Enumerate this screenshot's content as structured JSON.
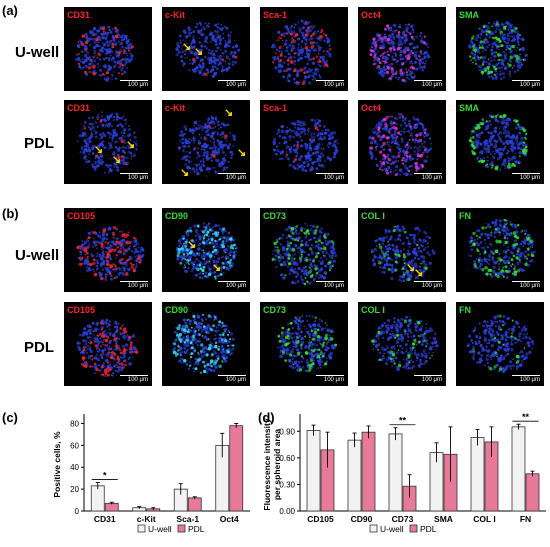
{
  "panels": {
    "a": {
      "letter": "(a)"
    },
    "b": {
      "letter": "(b)"
    },
    "c": {
      "letter": "(c)"
    },
    "d": {
      "letter": "(d)"
    }
  },
  "row_labels": {
    "uwell": "U-well",
    "pdl": "PDL"
  },
  "scale_text": "100 μm",
  "colors": {
    "red": "#ff2020",
    "green": "#33dd33",
    "uwell_bar": "#f2f2f2",
    "pdl_bar": "#e87a99",
    "nuclei": "#2a3fd8"
  },
  "panel_a": {
    "markers": [
      {
        "label": "CD31",
        "color": "red"
      },
      {
        "label": "c-Kit",
        "color": "red"
      },
      {
        "label": "Sca-1",
        "color": "red"
      },
      {
        "label": "Oct4",
        "color": "red"
      },
      {
        "label": "SMA",
        "color": "green"
      }
    ]
  },
  "panel_b": {
    "markers": [
      {
        "label": "CD105",
        "color": "red"
      },
      {
        "label": "CD90",
        "color": "green"
      },
      {
        "label": "CD73",
        "color": "green"
      },
      {
        "label": "COL I",
        "color": "green"
      },
      {
        "label": "FN",
        "color": "green"
      }
    ]
  },
  "chart_data": [
    {
      "type": "bar",
      "panel": "(c)",
      "categories": [
        "CD31",
        "c-Kit",
        "Sca-1",
        "Oct4"
      ],
      "series": [
        {
          "name": "U-well",
          "values": [
            23,
            3,
            20,
            60
          ],
          "errors": [
            3,
            1,
            5,
            11
          ]
        },
        {
          "name": "PDL",
          "values": [
            7,
            2,
            12,
            78
          ],
          "errors": [
            1,
            1,
            1,
            2
          ]
        }
      ],
      "ylabel": "Positive cells, %",
      "yticks": [
        0,
        20,
        40,
        60,
        80
      ],
      "ylim": [
        0,
        85
      ],
      "significance": [
        {
          "category": "CD31",
          "label": "*"
        }
      ],
      "legend": "bottom"
    },
    {
      "type": "bar",
      "panel": "(d)",
      "categories": [
        "CD105",
        "CD90",
        "CD73",
        "SMA",
        "COL I",
        "FN"
      ],
      "series": [
        {
          "name": "U-well",
          "values": [
            0.91,
            0.8,
            0.87,
            0.66,
            0.83,
            0.95
          ],
          "errors": [
            0.06,
            0.08,
            0.07,
            0.11,
            0.09,
            0.03
          ]
        },
        {
          "name": "PDL",
          "values": [
            0.69,
            0.89,
            0.28,
            0.64,
            0.78,
            0.42
          ],
          "errors": [
            0.2,
            0.07,
            0.13,
            0.31,
            0.17,
            0.03
          ]
        }
      ],
      "ylabel": "Fluorescence intensity per spheroid area",
      "yticks": [
        "0.00",
        "0.30",
        "0.60",
        "0.90"
      ],
      "ylim": [
        0,
        1.05
      ],
      "significance": [
        {
          "category": "CD73",
          "label": "**"
        },
        {
          "category": "FN",
          "label": "**"
        }
      ],
      "legend": "bottom"
    }
  ]
}
